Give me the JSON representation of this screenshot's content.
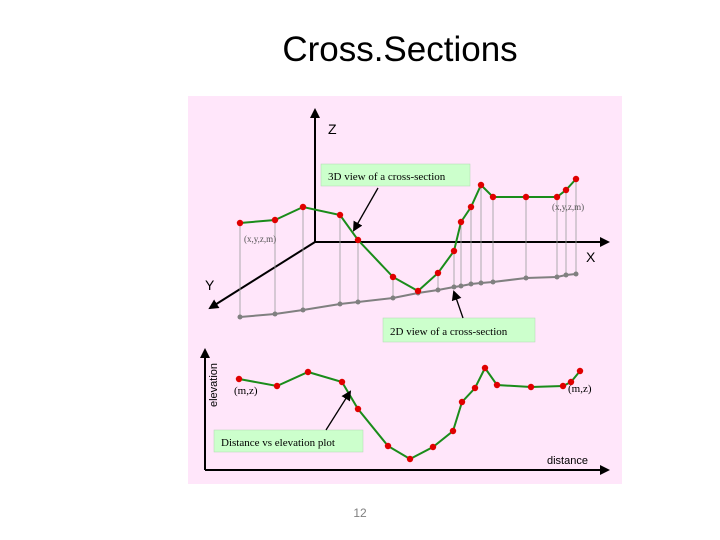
{
  "slide": {
    "title": "Cross.Sections",
    "page_number": "12"
  },
  "diagram": {
    "axis_z": "Z",
    "axis_x": "X",
    "axis_y": "Y",
    "label_3d_view": "3D view of a cross-section",
    "label_2d_view": "2D view of a cross-section",
    "label_plot": "Distance vs elevation plot",
    "point_label_xyzm_left": "(x,y,z,m)",
    "point_label_xyzm_right": "(x,y,z,m)",
    "point_label_mz_left": "(m,z)",
    "point_label_mz_right": "(m,z)",
    "axis_elevation": "elevation",
    "axis_distance": "distance"
  },
  "colors": {
    "background": "#ffe6fa",
    "profile_line": "#1a8c1a",
    "vertex": "#e00000",
    "ground_line": "#808080",
    "callout_fill": "#ccffcc",
    "axis": "#000000"
  }
}
